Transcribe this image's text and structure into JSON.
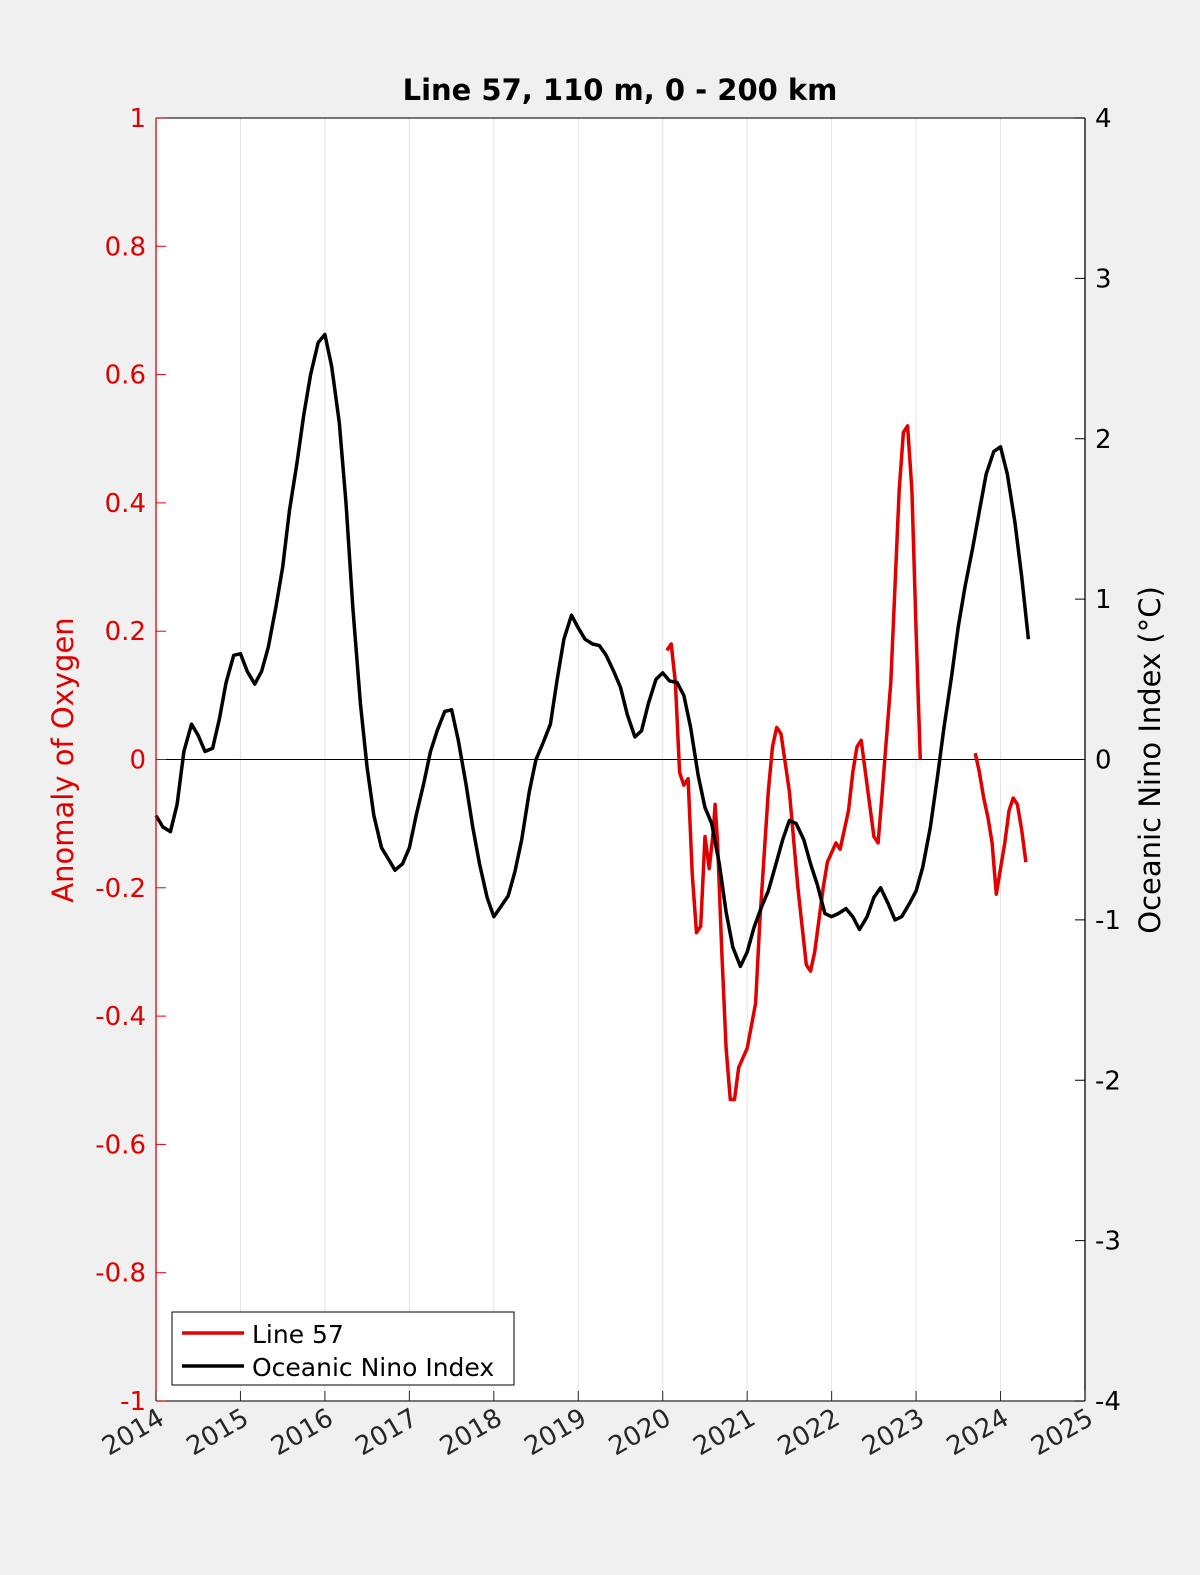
{
  "chart_data": {
    "type": "line",
    "title": "Line 57, 110 m, 0 - 200 km",
    "ylabel_left": "Anomaly of Oxygen",
    "ylabel_right": "Oceanic Nino Index (°C)",
    "xlabel": "",
    "xlim": [
      2014,
      2025
    ],
    "ylim_left": [
      -1,
      1
    ],
    "ylim_right": [
      -4,
      4
    ],
    "x_ticks": [
      "2014",
      "2015",
      "2016",
      "2017",
      "2018",
      "2019",
      "2020",
      "2021",
      "2022",
      "2023",
      "2024",
      "2025"
    ],
    "y_ticks_left": [
      "1",
      "0.8",
      "0.6",
      "0.4",
      "0.2",
      "0",
      "-0.2",
      "-0.4",
      "-0.6",
      "-0.8",
      "-1"
    ],
    "y_ticks_right": [
      "4",
      "3",
      "2",
      "1",
      "0",
      "-1",
      "-2",
      "-3",
      "-4"
    ],
    "x_grid": true,
    "zero_line": true,
    "legend_position": "bottom-left",
    "colors": {
      "line57": "#e00000",
      "oni": "#000000",
      "left_axis": "#e00000",
      "right_axis": "#000000"
    },
    "series": [
      {
        "name": "Line 57",
        "axis": "left",
        "segments": [
          [
            [
              2020.05,
              0.17
            ],
            [
              2020.1,
              0.18
            ],
            [
              2020.15,
              0.12
            ],
            [
              2020.2,
              -0.02
            ],
            [
              2020.25,
              -0.04
            ],
            [
              2020.3,
              -0.03
            ],
            [
              2020.35,
              -0.18
            ],
            [
              2020.4,
              -0.27
            ],
            [
              2020.45,
              -0.26
            ],
            [
              2020.5,
              -0.12
            ],
            [
              2020.55,
              -0.17
            ],
            [
              2020.6,
              -0.11
            ],
            [
              2020.62,
              -0.07
            ],
            [
              2020.65,
              -0.13
            ],
            [
              2020.7,
              -0.3
            ],
            [
              2020.75,
              -0.45
            ],
            [
              2020.8,
              -0.53
            ],
            [
              2020.85,
              -0.53
            ],
            [
              2020.9,
              -0.48
            ],
            [
              2021.0,
              -0.45
            ],
            [
              2021.1,
              -0.38
            ],
            [
              2021.15,
              -0.25
            ],
            [
              2021.25,
              -0.05
            ],
            [
              2021.3,
              0.02
            ],
            [
              2021.35,
              0.05
            ],
            [
              2021.4,
              0.04
            ],
            [
              2021.5,
              -0.05
            ],
            [
              2021.6,
              -0.2
            ],
            [
              2021.7,
              -0.32
            ],
            [
              2021.75,
              -0.33
            ],
            [
              2021.8,
              -0.3
            ],
            [
              2021.9,
              -0.2
            ],
            [
              2021.95,
              -0.16
            ],
            [
              2022.05,
              -0.13
            ],
            [
              2022.1,
              -0.14
            ],
            [
              2022.2,
              -0.08
            ],
            [
              2022.25,
              -0.02
            ],
            [
              2022.3,
              0.02
            ],
            [
              2022.35,
              0.03
            ],
            [
              2022.4,
              -0.02
            ],
            [
              2022.5,
              -0.12
            ],
            [
              2022.55,
              -0.13
            ],
            [
              2022.6,
              -0.05
            ],
            [
              2022.7,
              0.12
            ],
            [
              2022.75,
              0.27
            ],
            [
              2022.8,
              0.42
            ],
            [
              2022.85,
              0.51
            ],
            [
              2022.9,
              0.52
            ],
            [
              2022.95,
              0.42
            ],
            [
              2023.0,
              0.2
            ],
            [
              2023.05,
              0.0
            ]
          ],
          [
            [
              2023.7,
              0.01
            ],
            [
              2023.75,
              -0.02
            ],
            [
              2023.8,
              -0.06
            ],
            [
              2023.85,
              -0.09
            ],
            [
              2023.9,
              -0.13
            ],
            [
              2023.95,
              -0.21
            ],
            [
              2024.0,
              -0.17
            ],
            [
              2024.05,
              -0.13
            ],
            [
              2024.1,
              -0.08
            ],
            [
              2024.15,
              -0.06
            ],
            [
              2024.2,
              -0.07
            ],
            [
              2024.25,
              -0.11
            ],
            [
              2024.3,
              -0.16
            ]
          ]
        ]
      },
      {
        "name": "Oceanic Nino Index",
        "axis": "right",
        "segments": [
          [
            [
              2014.0,
              -0.35
            ],
            [
              2014.08,
              -0.42
            ],
            [
              2014.17,
              -0.45
            ],
            [
              2014.25,
              -0.28
            ],
            [
              2014.33,
              0.05
            ],
            [
              2014.42,
              0.22
            ],
            [
              2014.5,
              0.15
            ],
            [
              2014.58,
              0.05
            ],
            [
              2014.67,
              0.07
            ],
            [
              2014.75,
              0.25
            ],
            [
              2014.83,
              0.48
            ],
            [
              2014.92,
              0.65
            ],
            [
              2015.0,
              0.66
            ],
            [
              2015.08,
              0.55
            ],
            [
              2015.17,
              0.47
            ],
            [
              2015.25,
              0.55
            ],
            [
              2015.33,
              0.7
            ],
            [
              2015.42,
              0.95
            ],
            [
              2015.5,
              1.2
            ],
            [
              2015.58,
              1.55
            ],
            [
              2015.67,
              1.85
            ],
            [
              2015.75,
              2.15
            ],
            [
              2015.83,
              2.4
            ],
            [
              2015.92,
              2.6
            ],
            [
              2016.0,
              2.65
            ],
            [
              2016.08,
              2.45
            ],
            [
              2016.17,
              2.1
            ],
            [
              2016.25,
              1.6
            ],
            [
              2016.33,
              0.95
            ],
            [
              2016.42,
              0.35
            ],
            [
              2016.5,
              -0.05
            ],
            [
              2016.58,
              -0.35
            ],
            [
              2016.67,
              -0.55
            ],
            [
              2016.75,
              -0.62
            ],
            [
              2016.83,
              -0.69
            ],
            [
              2016.92,
              -0.65
            ],
            [
              2017.0,
              -0.55
            ],
            [
              2017.08,
              -0.35
            ],
            [
              2017.17,
              -0.15
            ],
            [
              2017.25,
              0.05
            ],
            [
              2017.33,
              0.18
            ],
            [
              2017.42,
              0.3
            ],
            [
              2017.5,
              0.31
            ],
            [
              2017.58,
              0.12
            ],
            [
              2017.67,
              -0.15
            ],
            [
              2017.75,
              -0.42
            ],
            [
              2017.83,
              -0.65
            ],
            [
              2017.92,
              -0.86
            ],
            [
              2018.0,
              -0.98
            ],
            [
              2018.08,
              -0.92
            ],
            [
              2018.17,
              -0.85
            ],
            [
              2018.25,
              -0.7
            ],
            [
              2018.33,
              -0.5
            ],
            [
              2018.42,
              -0.2
            ],
            [
              2018.5,
              0.0
            ],
            [
              2018.58,
              0.1
            ],
            [
              2018.67,
              0.22
            ],
            [
              2018.75,
              0.5
            ],
            [
              2018.83,
              0.75
            ],
            [
              2018.92,
              0.9
            ],
            [
              2019.0,
              0.82
            ],
            [
              2019.08,
              0.75
            ],
            [
              2019.17,
              0.72
            ],
            [
              2019.25,
              0.71
            ],
            [
              2019.33,
              0.65
            ],
            [
              2019.42,
              0.55
            ],
            [
              2019.5,
              0.45
            ],
            [
              2019.58,
              0.28
            ],
            [
              2019.67,
              0.14
            ],
            [
              2019.75,
              0.18
            ],
            [
              2019.83,
              0.35
            ],
            [
              2019.92,
              0.5
            ],
            [
              2020.0,
              0.54
            ],
            [
              2020.08,
              0.49
            ],
            [
              2020.17,
              0.48
            ],
            [
              2020.25,
              0.4
            ],
            [
              2020.33,
              0.2
            ],
            [
              2020.42,
              -0.1
            ],
            [
              2020.5,
              -0.3
            ],
            [
              2020.58,
              -0.4
            ],
            [
              2020.67,
              -0.65
            ],
            [
              2020.75,
              -0.95
            ],
            [
              2020.83,
              -1.17
            ],
            [
              2020.92,
              -1.29
            ],
            [
              2021.0,
              -1.2
            ],
            [
              2021.08,
              -1.05
            ],
            [
              2021.17,
              -0.92
            ],
            [
              2021.25,
              -0.82
            ],
            [
              2021.33,
              -0.67
            ],
            [
              2021.42,
              -0.5
            ],
            [
              2021.5,
              -0.38
            ],
            [
              2021.58,
              -0.4
            ],
            [
              2021.67,
              -0.5
            ],
            [
              2021.75,
              -0.65
            ],
            [
              2021.83,
              -0.78
            ],
            [
              2021.92,
              -0.96
            ],
            [
              2022.0,
              -0.98
            ],
            [
              2022.08,
              -0.96
            ],
            [
              2022.17,
              -0.93
            ],
            [
              2022.25,
              -0.98
            ],
            [
              2022.33,
              -1.06
            ],
            [
              2022.42,
              -0.98
            ],
            [
              2022.5,
              -0.86
            ],
            [
              2022.58,
              -0.8
            ],
            [
              2022.67,
              -0.9
            ],
            [
              2022.75,
              -1.0
            ],
            [
              2022.83,
              -0.98
            ],
            [
              2022.92,
              -0.9
            ],
            [
              2023.0,
              -0.82
            ],
            [
              2023.08,
              -0.67
            ],
            [
              2023.17,
              -0.42
            ],
            [
              2023.25,
              -0.12
            ],
            [
              2023.33,
              0.2
            ],
            [
              2023.42,
              0.52
            ],
            [
              2023.5,
              0.83
            ],
            [
              2023.58,
              1.08
            ],
            [
              2023.67,
              1.32
            ],
            [
              2023.75,
              1.55
            ],
            [
              2023.83,
              1.78
            ],
            [
              2023.92,
              1.92
            ],
            [
              2024.0,
              1.95
            ],
            [
              2024.08,
              1.78
            ],
            [
              2024.17,
              1.48
            ],
            [
              2024.25,
              1.14
            ],
            [
              2024.33,
              0.75
            ]
          ]
        ]
      }
    ]
  }
}
